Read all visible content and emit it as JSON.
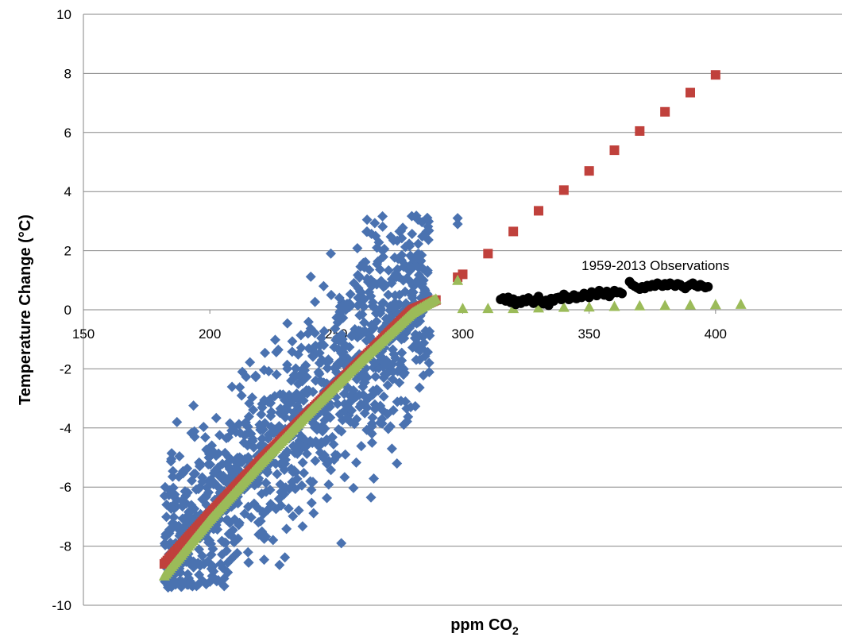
{
  "chart_data": {
    "type": "scatter",
    "title": "",
    "xlabel": "ppm CO",
    "xlabel_subscript": "2",
    "ylabel": "Temperature Change (°C)",
    "xlim": [
      150,
      450
    ],
    "ylim": [
      -10,
      10
    ],
    "x_ticks": [
      "150",
      "200",
      "250",
      "300",
      "350",
      "400"
    ],
    "y_ticks": [
      "10",
      "8",
      "6",
      "4",
      "2",
      "0",
      "-2",
      "-4",
      "-6",
      "-8",
      "-10"
    ],
    "grid": "horizontal",
    "legend": "none",
    "annotations": [
      {
        "text": "1959-2013  Observations",
        "x": 347,
        "y": 1.5
      }
    ],
    "series": [
      {
        "marker": "diamond",
        "color": "#4a72b0",
        "trend_points": [
          [
            182,
            -8.6,
            2.5
          ],
          [
            190,
            -7.8,
            2.6
          ],
          [
            200,
            -6.8,
            2.7
          ],
          [
            210,
            -5.9,
            2.8
          ],
          [
            220,
            -5.0,
            2.9
          ],
          [
            230,
            -4.2,
            3.0
          ],
          [
            240,
            -3.2,
            3.0
          ],
          [
            250,
            -2.3,
            3.1
          ],
          [
            258,
            -1.5,
            3.2
          ],
          [
            265,
            -0.9,
            3.4
          ],
          [
            272,
            -0.3,
            3.2
          ],
          [
            280,
            0.2,
            3.0
          ],
          [
            287,
            0.5,
            2.6
          ]
        ],
        "isolated_points": [
          [
            187,
            -3.8
          ],
          [
            189,
            -9.2
          ],
          [
            191,
            -9.3
          ],
          [
            194,
            -4.3
          ],
          [
            245,
            0.8
          ],
          [
            248,
            0.5
          ],
          [
            252,
            -7.9
          ],
          [
            272,
            -4.7
          ],
          [
            274,
            -5.2
          ],
          [
            298,
            3.1
          ],
          [
            298,
            2.9
          ]
        ]
      },
      {
        "marker": "square",
        "color": "#c0413c",
        "curve": [
          [
            182,
            -8.6
          ],
          [
            200,
            -6.9
          ],
          [
            220,
            -5.1
          ],
          [
            240,
            -3.4
          ],
          [
            260,
            -1.7
          ],
          [
            280,
            0.0
          ],
          [
            290,
            0.35
          ]
        ],
        "points": [
          [
            298,
            1.1
          ],
          [
            300,
            1.2
          ],
          [
            310,
            1.9
          ],
          [
            320,
            2.65
          ],
          [
            330,
            3.35
          ],
          [
            340,
            4.05
          ],
          [
            350,
            4.7
          ],
          [
            360,
            5.4
          ],
          [
            370,
            6.05
          ],
          [
            380,
            6.7
          ],
          [
            390,
            7.35
          ],
          [
            400,
            7.95
          ]
        ]
      },
      {
        "marker": "triangle",
        "color": "#9bbb59",
        "curve": [
          [
            182,
            -9.0
          ],
          [
            200,
            -7.1
          ],
          [
            220,
            -5.2
          ],
          [
            240,
            -3.4
          ],
          [
            260,
            -1.7
          ],
          [
            280,
            -0.1
          ],
          [
            290,
            0.4
          ]
        ],
        "points": [
          [
            298,
            1.0
          ],
          [
            300,
            0.05
          ],
          [
            310,
            0.05
          ],
          [
            320,
            0.05
          ],
          [
            330,
            0.07
          ],
          [
            340,
            0.09
          ],
          [
            350,
            0.1
          ],
          [
            360,
            0.12
          ],
          [
            370,
            0.14
          ],
          [
            380,
            0.15
          ],
          [
            390,
            0.17
          ],
          [
            400,
            0.18
          ],
          [
            410,
            0.19
          ]
        ]
      },
      {
        "marker": "circle",
        "color": "#000000",
        "x_range": [
          315,
          397
        ],
        "points": [
          [
            315,
            0.35
          ],
          [
            316,
            0.4
          ],
          [
            317,
            0.3
          ],
          [
            318,
            0.42
          ],
          [
            319,
            0.25
          ],
          [
            320,
            0.36
          ],
          [
            321,
            0.18
          ],
          [
            322,
            0.3
          ],
          [
            323,
            0.22
          ],
          [
            324,
            0.35
          ],
          [
            325,
            0.28
          ],
          [
            326,
            0.4
          ],
          [
            327,
            0.3
          ],
          [
            328,
            0.22
          ],
          [
            329,
            0.35
          ],
          [
            330,
            0.45
          ],
          [
            331,
            0.28
          ],
          [
            332,
            0.2
          ],
          [
            333,
            0.32
          ],
          [
            334,
            0.15
          ],
          [
            335,
            0.38
          ],
          [
            336,
            0.3
          ],
          [
            337,
            0.4
          ],
          [
            338,
            0.42
          ],
          [
            339,
            0.35
          ],
          [
            340,
            0.52
          ],
          [
            341,
            0.45
          ],
          [
            342,
            0.35
          ],
          [
            343,
            0.4
          ],
          [
            344,
            0.5
          ],
          [
            345,
            0.38
          ],
          [
            346,
            0.45
          ],
          [
            347,
            0.42
          ],
          [
            348,
            0.55
          ],
          [
            349,
            0.5
          ],
          [
            350,
            0.42
          ],
          [
            351,
            0.6
          ],
          [
            352,
            0.55
          ],
          [
            353,
            0.48
          ],
          [
            354,
            0.65
          ],
          [
            355,
            0.58
          ],
          [
            356,
            0.5
          ],
          [
            357,
            0.62
          ],
          [
            358,
            0.45
          ],
          [
            359,
            0.55
          ],
          [
            360,
            0.65
          ],
          [
            361,
            0.58
          ],
          [
            362,
            0.6
          ],
          [
            363,
            0.55
          ],
          [
            366,
            0.95
          ],
          [
            367,
            0.85
          ],
          [
            368,
            0.8
          ],
          [
            369,
            0.75
          ],
          [
            370,
            0.7
          ],
          [
            371,
            0.78
          ],
          [
            372,
            0.72
          ],
          [
            373,
            0.82
          ],
          [
            374,
            0.78
          ],
          [
            375,
            0.85
          ],
          [
            376,
            0.8
          ],
          [
            377,
            0.9
          ],
          [
            378,
            0.85
          ],
          [
            379,
            0.8
          ],
          [
            380,
            0.88
          ],
          [
            381,
            0.82
          ],
          [
            382,
            0.9
          ],
          [
            383,
            0.85
          ],
          [
            384,
            0.8
          ],
          [
            385,
            0.88
          ],
          [
            386,
            0.85
          ],
          [
            387,
            0.78
          ],
          [
            388,
            0.72
          ],
          [
            389,
            0.8
          ],
          [
            390,
            0.85
          ],
          [
            391,
            0.9
          ],
          [
            392,
            0.82
          ],
          [
            393,
            0.78
          ],
          [
            394,
            0.85
          ],
          [
            395,
            0.8
          ],
          [
            396,
            0.75
          ],
          [
            397,
            0.78
          ]
        ]
      }
    ]
  }
}
